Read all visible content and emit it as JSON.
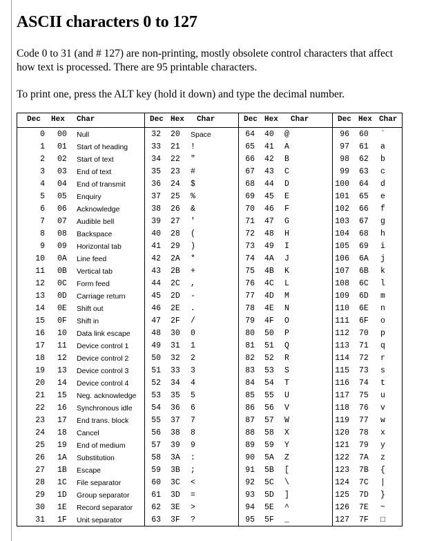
{
  "title": "ASCII characters 0 to 127",
  "intro": "Code 0 to 31 (and # 127) are non-printing, mostly obsolete control characters that affect how text is processed. There are 95 printable characters.",
  "instructions": "To print one, press the ALT key (hold it down) and type the decimal number.",
  "headers": {
    "dec": "Dec",
    "hex": "Hex",
    "char": "Char"
  },
  "groups": [
    [
      [
        "0",
        "00",
        "Null"
      ],
      [
        "1",
        "01",
        "Start of heading"
      ],
      [
        "2",
        "02",
        "Start of text"
      ],
      [
        "3",
        "03",
        "End of text"
      ],
      [
        "4",
        "04",
        "End of transmit"
      ],
      [
        "5",
        "05",
        "Enquiry"
      ],
      [
        "6",
        "06",
        "Acknowledge"
      ],
      [
        "7",
        "07",
        "Audible bell"
      ],
      [
        "8",
        "08",
        "Backspace"
      ],
      [
        "9",
        "09",
        "Horizontal tab"
      ],
      [
        "10",
        "0A",
        "Line feed"
      ],
      [
        "11",
        "0B",
        "Vertical tab"
      ],
      [
        "12",
        "0C",
        "Form feed"
      ],
      [
        "13",
        "0D",
        "Carriage return"
      ],
      [
        "14",
        "0E",
        "Shift out"
      ],
      [
        "15",
        "0F",
        "Shift in"
      ],
      [
        "16",
        "10",
        "Data link escape"
      ],
      [
        "17",
        "11",
        "Device control 1"
      ],
      [
        "18",
        "12",
        "Device control 2"
      ],
      [
        "19",
        "13",
        "Device control 3"
      ],
      [
        "20",
        "14",
        "Device control 4"
      ],
      [
        "21",
        "15",
        "Neg. acknowledge"
      ],
      [
        "22",
        "16",
        "Synchronous idle"
      ],
      [
        "23",
        "17",
        "End trans. block"
      ],
      [
        "24",
        "18",
        "Cancel"
      ],
      [
        "25",
        "19",
        "End of medium"
      ],
      [
        "26",
        "1A",
        "Substitution"
      ],
      [
        "27",
        "1B",
        "Escape"
      ],
      [
        "28",
        "1C",
        "File separator"
      ],
      [
        "29",
        "1D",
        "Group separator"
      ],
      [
        "30",
        "1E",
        "Record separator"
      ],
      [
        "31",
        "1F",
        "Unit separator"
      ]
    ],
    [
      [
        "32",
        "20",
        "Space"
      ],
      [
        "33",
        "21",
        "!"
      ],
      [
        "34",
        "22",
        "\""
      ],
      [
        "35",
        "23",
        "#"
      ],
      [
        "36",
        "24",
        "$"
      ],
      [
        "37",
        "25",
        "%"
      ],
      [
        "38",
        "26",
        "&"
      ],
      [
        "39",
        "27",
        "'"
      ],
      [
        "40",
        "28",
        "("
      ],
      [
        "41",
        "29",
        ")"
      ],
      [
        "42",
        "2A",
        "*"
      ],
      [
        "43",
        "2B",
        "+"
      ],
      [
        "44",
        "2C",
        ","
      ],
      [
        "45",
        "2D",
        "-"
      ],
      [
        "46",
        "2E",
        "."
      ],
      [
        "47",
        "2F",
        "/"
      ],
      [
        "48",
        "30",
        "0"
      ],
      [
        "49",
        "31",
        "1"
      ],
      [
        "50",
        "32",
        "2"
      ],
      [
        "51",
        "33",
        "3"
      ],
      [
        "52",
        "34",
        "4"
      ],
      [
        "53",
        "35",
        "5"
      ],
      [
        "54",
        "36",
        "6"
      ],
      [
        "55",
        "37",
        "7"
      ],
      [
        "56",
        "38",
        "8"
      ],
      [
        "57",
        "39",
        "9"
      ],
      [
        "58",
        "3A",
        ":"
      ],
      [
        "59",
        "3B",
        ";"
      ],
      [
        "60",
        "3C",
        "<"
      ],
      [
        "61",
        "3D",
        "="
      ],
      [
        "62",
        "3E",
        ">"
      ],
      [
        "63",
        "3F",
        "?"
      ]
    ],
    [
      [
        "64",
        "40",
        "@"
      ],
      [
        "65",
        "41",
        "A"
      ],
      [
        "66",
        "42",
        "B"
      ],
      [
        "67",
        "43",
        "C"
      ],
      [
        "68",
        "44",
        "D"
      ],
      [
        "69",
        "45",
        "E"
      ],
      [
        "70",
        "46",
        "F"
      ],
      [
        "71",
        "47",
        "G"
      ],
      [
        "72",
        "48",
        "H"
      ],
      [
        "73",
        "49",
        "I"
      ],
      [
        "74",
        "4A",
        "J"
      ],
      [
        "75",
        "4B",
        "K"
      ],
      [
        "76",
        "4C",
        "L"
      ],
      [
        "77",
        "4D",
        "M"
      ],
      [
        "78",
        "4E",
        "N"
      ],
      [
        "79",
        "4F",
        "O"
      ],
      [
        "80",
        "50",
        "P"
      ],
      [
        "81",
        "51",
        "Q"
      ],
      [
        "82",
        "52",
        "R"
      ],
      [
        "83",
        "53",
        "S"
      ],
      [
        "84",
        "54",
        "T"
      ],
      [
        "85",
        "55",
        "U"
      ],
      [
        "86",
        "56",
        "V"
      ],
      [
        "87",
        "57",
        "W"
      ],
      [
        "88",
        "58",
        "X"
      ],
      [
        "89",
        "59",
        "Y"
      ],
      [
        "90",
        "5A",
        "Z"
      ],
      [
        "91",
        "5B",
        "["
      ],
      [
        "92",
        "5C",
        "\\"
      ],
      [
        "93",
        "5D",
        "]"
      ],
      [
        "94",
        "5E",
        "^"
      ],
      [
        "95",
        "5F",
        "_"
      ]
    ],
    [
      [
        "96",
        "60",
        "`"
      ],
      [
        "97",
        "61",
        "a"
      ],
      [
        "98",
        "62",
        "b"
      ],
      [
        "99",
        "63",
        "c"
      ],
      [
        "100",
        "64",
        "d"
      ],
      [
        "101",
        "65",
        "e"
      ],
      [
        "102",
        "66",
        "f"
      ],
      [
        "103",
        "67",
        "g"
      ],
      [
        "104",
        "68",
        "h"
      ],
      [
        "105",
        "69",
        "i"
      ],
      [
        "106",
        "6A",
        "j"
      ],
      [
        "107",
        "6B",
        "k"
      ],
      [
        "108",
        "6C",
        "l"
      ],
      [
        "109",
        "6D",
        "m"
      ],
      [
        "110",
        "6E",
        "n"
      ],
      [
        "111",
        "6F",
        "o"
      ],
      [
        "112",
        "70",
        "p"
      ],
      [
        "113",
        "71",
        "q"
      ],
      [
        "114",
        "72",
        "r"
      ],
      [
        "115",
        "73",
        "s"
      ],
      [
        "116",
        "74",
        "t"
      ],
      [
        "117",
        "75",
        "u"
      ],
      [
        "118",
        "76",
        "v"
      ],
      [
        "119",
        "77",
        "w"
      ],
      [
        "120",
        "78",
        "x"
      ],
      [
        "121",
        "79",
        "y"
      ],
      [
        "122",
        "7A",
        "z"
      ],
      [
        "123",
        "7B",
        "{"
      ],
      [
        "124",
        "7C",
        "|"
      ],
      [
        "125",
        "7D",
        "}"
      ],
      [
        "126",
        "7E",
        "~"
      ],
      [
        "127",
        "7F",
        "□"
      ]
    ]
  ]
}
